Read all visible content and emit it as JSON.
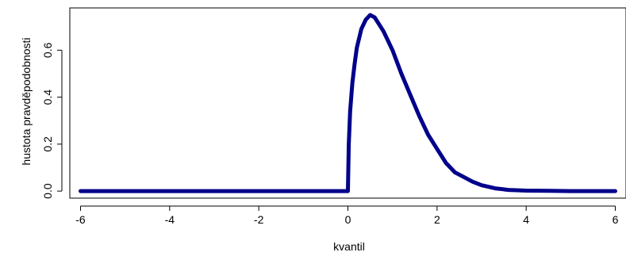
{
  "chart_data": {
    "type": "line",
    "title": "",
    "xlabel": "kvantil",
    "ylabel": "hustota pravděpodobnosti",
    "xlim": [
      -6.24,
      6.24
    ],
    "ylim": [
      -0.03,
      0.78
    ],
    "x_ticks": [
      -6,
      -4,
      -2,
      0,
      2,
      4,
      6
    ],
    "x_tick_labels": [
      "-6",
      "-4",
      "-2",
      "0",
      "2",
      "4",
      "6"
    ],
    "y_ticks": [
      0.0,
      0.2,
      0.4,
      0.6
    ],
    "y_tick_labels": [
      "0.0",
      "0.2",
      "0.4",
      "0.6"
    ],
    "grid": false,
    "legend": "none",
    "series": [
      {
        "color": "#00008b",
        "x": [
          -6,
          -0.001,
          0.0,
          0.02,
          0.05,
          0.1,
          0.15,
          0.2,
          0.3,
          0.4,
          0.5,
          0.6,
          0.7,
          0.8,
          1.0,
          1.2,
          1.4,
          1.6,
          1.8,
          2.0,
          2.2,
          2.4,
          2.6,
          2.8,
          3.0,
          3.3,
          3.6,
          4.0,
          4.5,
          5.0,
          5.5,
          6.0
        ],
        "values": [
          0.0,
          0.0,
          0.0,
          0.2,
          0.34,
          0.46,
          0.54,
          0.61,
          0.69,
          0.73,
          0.75,
          0.74,
          0.71,
          0.68,
          0.6,
          0.5,
          0.41,
          0.32,
          0.24,
          0.18,
          0.12,
          0.08,
          0.06,
          0.04,
          0.025,
          0.012,
          0.005,
          0.002,
          0.001,
          0.0,
          0.0,
          0.0
        ]
      }
    ]
  }
}
